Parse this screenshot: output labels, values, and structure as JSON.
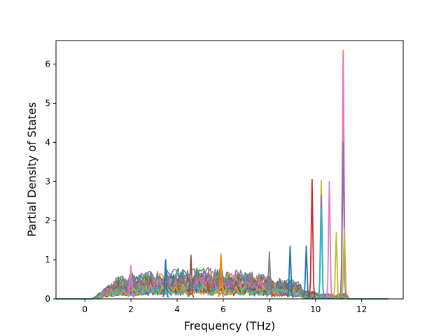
{
  "chart_data": {
    "type": "line",
    "title": "",
    "xlabel": "Frequency (THz)",
    "ylabel": "Partial Density of States",
    "xlim": [
      -1.25,
      13.8
    ],
    "ylim": [
      0,
      6.6
    ],
    "xticks": [
      0,
      2,
      4,
      6,
      8,
      10,
      12
    ],
    "yticks": [
      0,
      1,
      2,
      3,
      4,
      5,
      6
    ],
    "grid": false,
    "legend": "none",
    "x_range": [
      -1.25,
      13.15
    ],
    "series_colors": [
      "#1f77b4",
      "#ff7f0e",
      "#2ca02c",
      "#d62728",
      "#9467bd",
      "#8c564b",
      "#e377c2",
      "#7f7f7f",
      "#bcbd22",
      "#17becf"
    ],
    "series_count": 30,
    "baseline_window": [
      0.3,
      9.4
    ],
    "peaks": [
      {
        "x": 2.0,
        "y": 0.85,
        "color": "#e377c2"
      },
      {
        "x": 3.5,
        "y": 1.0,
        "color": "#1f77b4"
      },
      {
        "x": 4.6,
        "y": 1.12,
        "color": "#8c564b"
      },
      {
        "x": 5.9,
        "y": 1.15,
        "color": "#ff7f0e"
      },
      {
        "x": 8.0,
        "y": 1.2,
        "color": "#7f7f7f"
      },
      {
        "x": 8.9,
        "y": 1.35,
        "color": "#1f77b4"
      },
      {
        "x": 9.6,
        "y": 1.35,
        "color": "#1f77b4"
      },
      {
        "x": 9.85,
        "y": 3.05,
        "color": "#d62728"
      },
      {
        "x": 10.25,
        "y": 3.03,
        "color": "#bcbd22"
      },
      {
        "x": 10.25,
        "y": 2.65,
        "color": "#9467bd"
      },
      {
        "x": 10.25,
        "y": 2.3,
        "color": "#17becf"
      },
      {
        "x": 10.6,
        "y": 3.0,
        "color": "#e377c2"
      },
      {
        "x": 10.9,
        "y": 1.7,
        "color": "#bcbd22"
      },
      {
        "x": 11.2,
        "y": 6.35,
        "color": "#ff7f0e"
      },
      {
        "x": 11.2,
        "y": 6.25,
        "color": "#e377c2"
      },
      {
        "x": 11.2,
        "y": 4.0,
        "color": "#9467bd"
      },
      {
        "x": 11.25,
        "y": 1.8,
        "color": "#bcbd22"
      }
    ]
  }
}
